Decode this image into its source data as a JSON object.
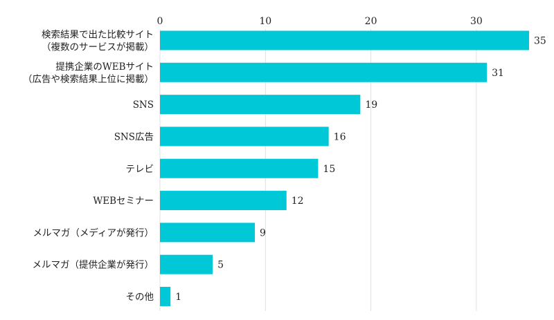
{
  "chart_data": {
    "type": "bar",
    "orientation": "horizontal",
    "title": "",
    "xlabel": "",
    "ylabel": "",
    "xlim": [
      0,
      35
    ],
    "xticks": [
      0,
      10,
      20,
      30
    ],
    "grid": true,
    "bar_color": "#00C8D7",
    "categories": [
      [
        "検索結果で出た比較サイト",
        "（複数のサービスが掲載）"
      ],
      [
        "提携企業のWEBサイト",
        "（広告や検索結果上位に掲載）"
      ],
      [
        "SNS"
      ],
      [
        "SNS広告"
      ],
      [
        "テレビ"
      ],
      [
        "WEBセミナー"
      ],
      [
        "メルマガ（メディアが発行）"
      ],
      [
        "メルマガ（提供企業が発行）"
      ],
      [
        "その他"
      ]
    ],
    "values": [
      35,
      31,
      19,
      16,
      15,
      12,
      9,
      5,
      1
    ]
  }
}
